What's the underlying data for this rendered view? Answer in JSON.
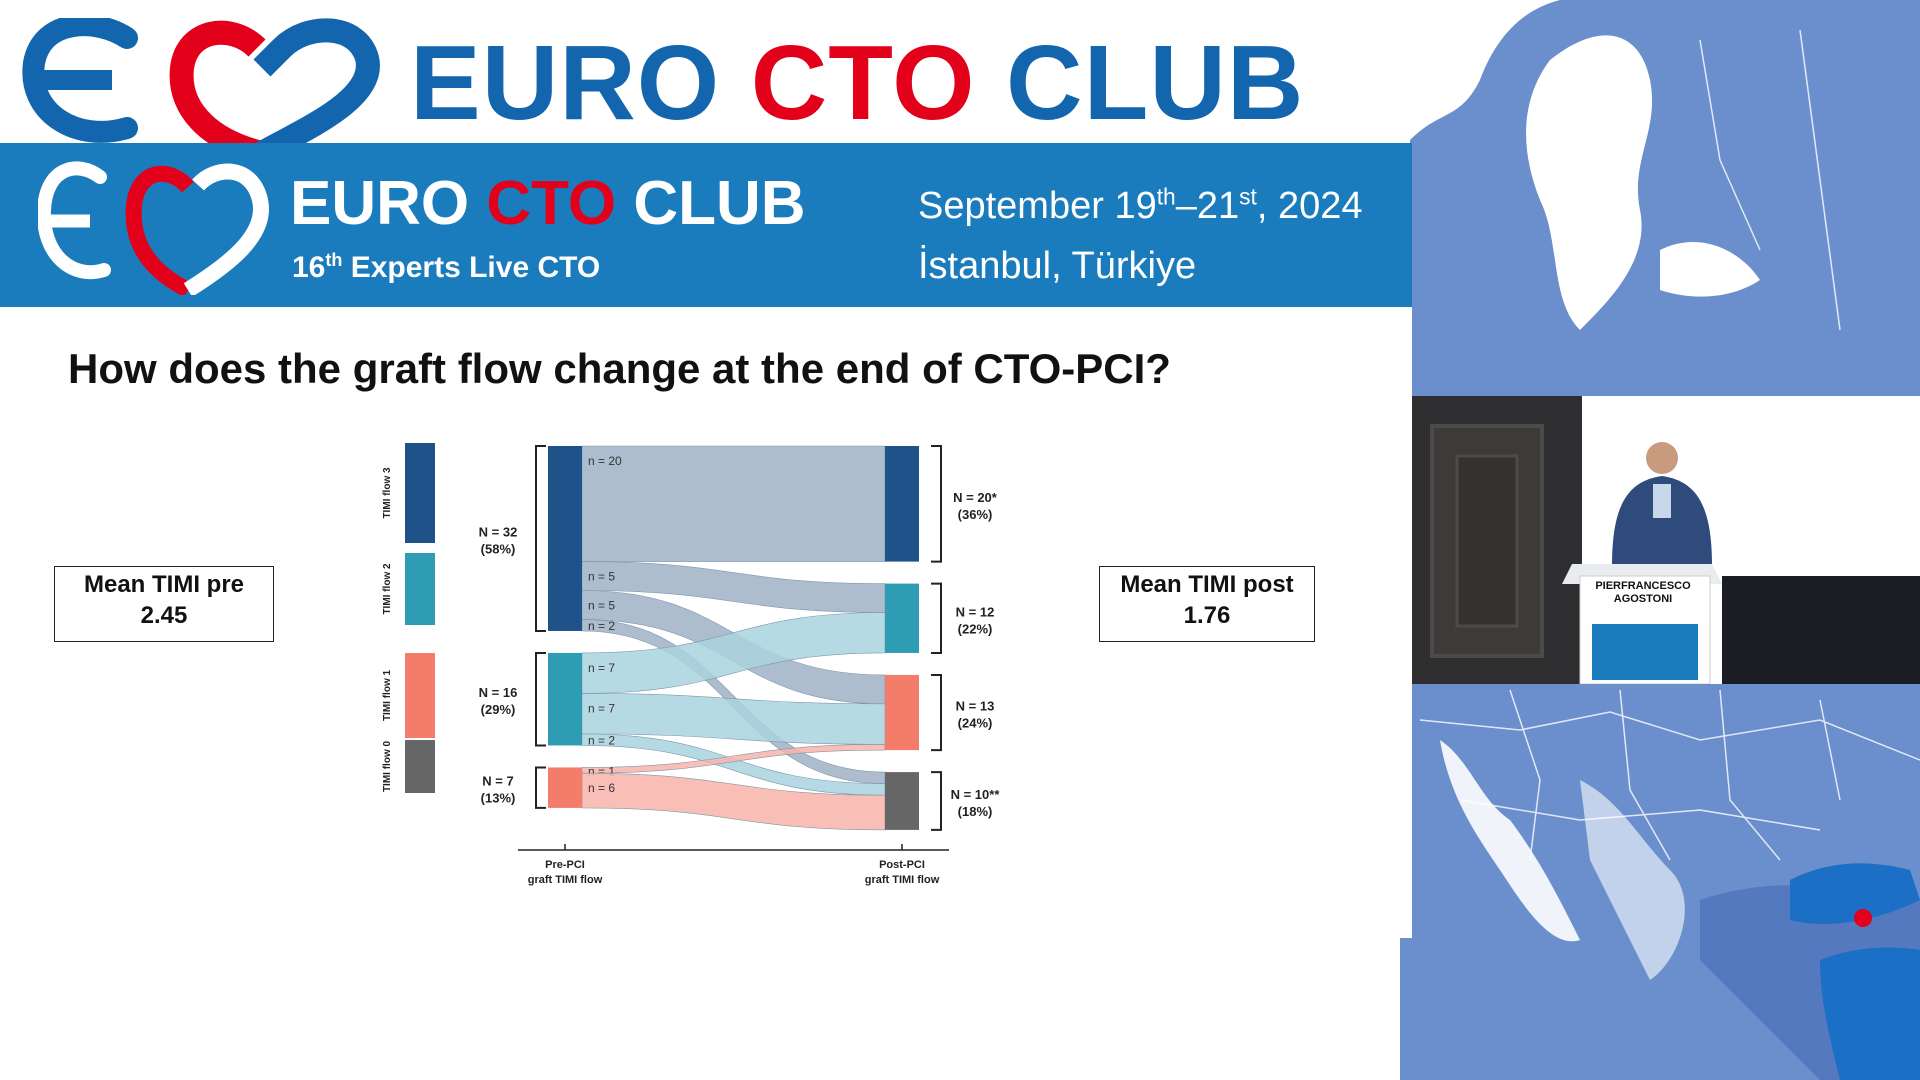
{
  "brand": {
    "word1": "EURO",
    "word2": "CTO",
    "word3": "CLUB"
  },
  "banner": {
    "word1": "EURO",
    "word2": "CTO",
    "word3": "CLUB",
    "edition_num": "16",
    "edition_sup": "th",
    "edition_text": " Experts Live CTO",
    "date_pre": "September 19",
    "date_sup1": "th",
    "date_mid": "–21",
    "date_sup2": "st",
    "date_post": ", 2024",
    "place": "İstanbul, Türkiye"
  },
  "slide": {
    "question": "How does the graft flow change at the end of CTO-PCI?",
    "mean_pre_label": "Mean TIMI pre",
    "mean_pre_value": "2.45",
    "mean_post_label": "Mean TIMI post",
    "mean_post_value": "1.76"
  },
  "speaker": {
    "podium_line1": "PIERFRANCESCO",
    "podium_line2": "AGOSTONI"
  },
  "chart_data": {
    "type": "sankey",
    "legend": [
      {
        "name": "TIMI flow 3",
        "color": "#1f5289"
      },
      {
        "name": "TIMI flow 2",
        "color": "#2e9cb3"
      },
      {
        "name": "TIMI flow 1",
        "color": "#f47c6b"
      },
      {
        "name": "TIMI flow 0",
        "color": "#666666"
      }
    ],
    "pre_groups": [
      {
        "grade": 3,
        "n_label": "N = 32",
        "pct_label": "(58%)",
        "color": "#1f5289"
      },
      {
        "grade": 2,
        "n_label": "N = 16",
        "pct_label": "(29%)",
        "color": "#2e9cb3"
      },
      {
        "grade": 1,
        "n_label": "N = 7",
        "pct_label": "(13%)",
        "color": "#f47c6b"
      },
      {
        "grade": 0,
        "n_label": "",
        "pct_label": "",
        "color": "#666666"
      }
    ],
    "post_groups": [
      {
        "grade": 3,
        "n_label": "N = 20*",
        "pct_label": "(36%)",
        "color": "#1f5289"
      },
      {
        "grade": 2,
        "n_label": "N = 12",
        "pct_label": "(22%)",
        "color": "#2e9cb3"
      },
      {
        "grade": 1,
        "n_label": "N = 13",
        "pct_label": "(24%)",
        "color": "#f47c6b"
      },
      {
        "grade": 0,
        "n_label": "N = 10**",
        "pct_label": "(18%)",
        "color": "#666666"
      }
    ],
    "flows": [
      {
        "from": 3,
        "to": 3,
        "n": 20,
        "label": "n = 20"
      },
      {
        "from": 3,
        "to": 2,
        "n": 5,
        "label": "n = 5"
      },
      {
        "from": 3,
        "to": 1,
        "n": 5,
        "label": "n = 5"
      },
      {
        "from": 3,
        "to": 0,
        "n": 2,
        "label": "n = 2"
      },
      {
        "from": 2,
        "to": 2,
        "n": 7,
        "label": "n = 7"
      },
      {
        "from": 2,
        "to": 1,
        "n": 7,
        "label": "n = 7"
      },
      {
        "from": 2,
        "to": 0,
        "n": 2,
        "label": "n = 2"
      },
      {
        "from": 1,
        "to": 1,
        "n": 1,
        "label": "n = 1"
      },
      {
        "from": 1,
        "to": 0,
        "n": 6,
        "label": "n = 6"
      }
    ],
    "xlabel_left_line1": "Pre-PCI",
    "xlabel_left_line2": "graft TIMI flow",
    "xlabel_right_line1": "Post-PCI",
    "xlabel_right_line2": "graft TIMI flow"
  },
  "colors": {
    "brand_blue": "#1366ae",
    "brand_red": "#e2001a",
    "banner_blue": "#1b7cbd",
    "map_blue": "#5f8bc9"
  }
}
